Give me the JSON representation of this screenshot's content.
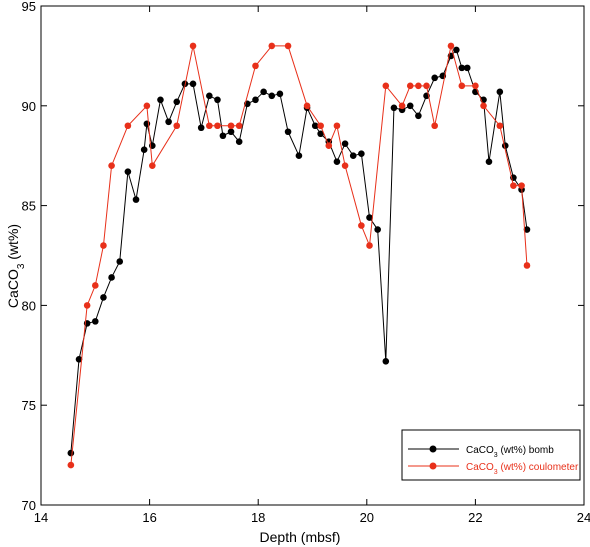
{
  "chart_data": {
    "type": "line",
    "xlabel": "Depth (mbsf)",
    "ylabel": {
      "main": "CaCO",
      "sub": "3",
      "tail": " (wt%)"
    },
    "xlim": [
      14,
      24
    ],
    "ylim": [
      70,
      95
    ],
    "x_ticks": [
      14,
      16,
      18,
      20,
      22,
      24
    ],
    "y_ticks": [
      70,
      75,
      80,
      85,
      90,
      95
    ],
    "grid": false,
    "legend_position": "bottom-right",
    "series": [
      {
        "legend": {
          "main": "CaCO",
          "sub": "3",
          "tail": " (wt%) bomb"
        },
        "color": "#000000",
        "points": [
          [
            14.55,
            72.6
          ],
          [
            14.7,
            77.3
          ],
          [
            14.85,
            79.1
          ],
          [
            15.0,
            79.2
          ],
          [
            15.15,
            80.4
          ],
          [
            15.3,
            81.4
          ],
          [
            15.45,
            82.2
          ],
          [
            15.6,
            86.7
          ],
          [
            15.75,
            85.3
          ],
          [
            15.9,
            87.8
          ],
          [
            15.95,
            89.1
          ],
          [
            16.05,
            88.0
          ],
          [
            16.2,
            90.3
          ],
          [
            16.35,
            89.2
          ],
          [
            16.5,
            90.2
          ],
          [
            16.65,
            91.1
          ],
          [
            16.8,
            91.1
          ],
          [
            16.95,
            88.9
          ],
          [
            17.1,
            90.5
          ],
          [
            17.25,
            90.3
          ],
          [
            17.35,
            88.5
          ],
          [
            17.5,
            88.7
          ],
          [
            17.65,
            88.2
          ],
          [
            17.8,
            90.1
          ],
          [
            17.95,
            90.3
          ],
          [
            18.1,
            90.7
          ],
          [
            18.25,
            90.5
          ],
          [
            18.4,
            90.6
          ],
          [
            18.55,
            88.7
          ],
          [
            18.75,
            87.5
          ],
          [
            18.9,
            89.9
          ],
          [
            19.05,
            89.0
          ],
          [
            19.15,
            88.6
          ],
          [
            19.3,
            88.2
          ],
          [
            19.45,
            87.2
          ],
          [
            19.6,
            88.1
          ],
          [
            19.75,
            87.5
          ],
          [
            19.9,
            87.6
          ],
          [
            20.05,
            84.4
          ],
          [
            20.2,
            83.8
          ],
          [
            20.35,
            77.2
          ],
          [
            20.5,
            89.9
          ],
          [
            20.65,
            89.8
          ],
          [
            20.8,
            90.0
          ],
          [
            20.95,
            89.5
          ],
          [
            21.1,
            90.5
          ],
          [
            21.25,
            91.4
          ],
          [
            21.4,
            91.5
          ],
          [
            21.55,
            92.5
          ],
          [
            21.65,
            92.8
          ],
          [
            21.75,
            91.9
          ],
          [
            21.85,
            91.9
          ],
          [
            22.0,
            90.7
          ],
          [
            22.15,
            90.3
          ],
          [
            22.25,
            87.2
          ],
          [
            22.45,
            90.7
          ],
          [
            22.55,
            88.0
          ],
          [
            22.7,
            86.4
          ],
          [
            22.85,
            85.8
          ],
          [
            22.95,
            83.8
          ]
        ]
      },
      {
        "legend": {
          "main": "CaCO",
          "sub": "3",
          "tail": " (wt%) coulometer"
        },
        "color": "#e8301a",
        "points": [
          [
            14.55,
            72.0
          ],
          [
            14.85,
            80.0
          ],
          [
            15.0,
            81.0
          ],
          [
            15.15,
            83.0
          ],
          [
            15.3,
            87.0
          ],
          [
            15.6,
            89.0
          ],
          [
            15.95,
            90.0
          ],
          [
            16.05,
            87.0
          ],
          [
            16.5,
            89.0
          ],
          [
            16.8,
            93.0
          ],
          [
            17.1,
            89.0
          ],
          [
            17.25,
            89.0
          ],
          [
            17.5,
            89.0
          ],
          [
            17.65,
            89.0
          ],
          [
            17.95,
            92.0
          ],
          [
            18.25,
            93.0
          ],
          [
            18.55,
            93.0
          ],
          [
            18.9,
            90.0
          ],
          [
            19.15,
            89.0
          ],
          [
            19.3,
            88.0
          ],
          [
            19.45,
            89.0
          ],
          [
            19.6,
            87.0
          ],
          [
            19.9,
            84.0
          ],
          [
            20.05,
            83.0
          ],
          [
            20.35,
            91.0
          ],
          [
            20.65,
            90.0
          ],
          [
            20.8,
            91.0
          ],
          [
            20.95,
            91.0
          ],
          [
            21.1,
            91.0
          ],
          [
            21.25,
            89.0
          ],
          [
            21.55,
            93.0
          ],
          [
            21.75,
            91.0
          ],
          [
            22.0,
            91.0
          ],
          [
            22.15,
            90.0
          ],
          [
            22.45,
            89.0
          ],
          [
            22.7,
            86.0
          ],
          [
            22.85,
            86.0
          ],
          [
            22.95,
            82.0
          ]
        ]
      }
    ]
  }
}
